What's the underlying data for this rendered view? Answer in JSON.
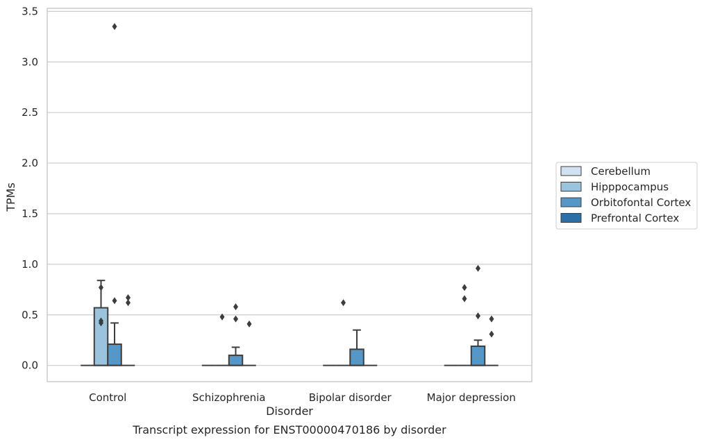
{
  "chart_data": {
    "type": "box",
    "title": "",
    "caption": "Transcript expression for ENST00000470186 by disorder",
    "xlabel": "Disorder",
    "ylabel": "TPMs",
    "ylim": [
      -0.16,
      3.53
    ],
    "yticks": [
      "0.0",
      "0.5",
      "1.0",
      "1.5",
      "2.0",
      "2.5",
      "3.0",
      "3.5"
    ],
    "grid": "horizontal",
    "legend_position": "right",
    "categories": [
      "Control",
      "Schizophrenia",
      "Bipolar disorder",
      "Major depression"
    ],
    "series": [
      {
        "name": "Cerebellum",
        "color": "#d0e1f2",
        "boxes": [
          {
            "q1": 0,
            "median": 0,
            "q3": 0,
            "whisker_low": 0,
            "whisker_high": 0,
            "outliers": []
          },
          {
            "q1": 0,
            "median": 0,
            "q3": 0,
            "whisker_low": 0,
            "whisker_high": 0,
            "outliers": []
          },
          {
            "q1": 0,
            "median": 0,
            "q3": 0,
            "whisker_low": 0,
            "whisker_high": 0,
            "outliers": []
          },
          {
            "q1": 0,
            "median": 0,
            "q3": 0,
            "whisker_low": 0,
            "whisker_high": 0,
            "outliers": []
          }
        ]
      },
      {
        "name": "Hipppocampus",
        "color": "#9ac3dd",
        "boxes": [
          {
            "q1": 0,
            "median": 0,
            "q3": 0.57,
            "whisker_low": 0,
            "whisker_high": 0.84,
            "outliers": [
              0.77,
              0.44,
              0.42
            ]
          },
          {
            "q1": 0,
            "median": 0,
            "q3": 0,
            "whisker_low": 0,
            "whisker_high": 0,
            "outliers": [
              0.48
            ]
          },
          {
            "q1": 0,
            "median": 0,
            "q3": 0,
            "whisker_low": 0,
            "whisker_high": 0,
            "outliers": [
              0.62
            ]
          },
          {
            "q1": 0,
            "median": 0,
            "q3": 0,
            "whisker_low": 0,
            "whisker_high": 0,
            "outliers": [
              0.77,
              0.66
            ]
          }
        ]
      },
      {
        "name": "Orbitofontal Cortex",
        "color": "#5597c6",
        "boxes": [
          {
            "q1": 0,
            "median": 0,
            "q3": 0.21,
            "whisker_low": 0,
            "whisker_high": 0.42,
            "outliers": [
              0.64,
              3.35
            ]
          },
          {
            "q1": 0,
            "median": 0,
            "q3": 0.1,
            "whisker_low": 0,
            "whisker_high": 0.18,
            "outliers": [
              0.58,
              0.46
            ]
          },
          {
            "q1": 0,
            "median": 0,
            "q3": 0.16,
            "whisker_low": 0,
            "whisker_high": 0.35,
            "outliers": []
          },
          {
            "q1": 0,
            "median": 0,
            "q3": 0.19,
            "whisker_low": 0,
            "whisker_high": 0.25,
            "outliers": [
              0.96,
              0.49
            ]
          }
        ]
      },
      {
        "name": "Prefrontal Cortex",
        "color": "#2a6fa8",
        "boxes": [
          {
            "q1": 0,
            "median": 0,
            "q3": 0,
            "whisker_low": 0,
            "whisker_high": 0,
            "outliers": [
              0.67,
              0.62
            ]
          },
          {
            "q1": 0,
            "median": 0,
            "q3": 0,
            "whisker_low": 0,
            "whisker_high": 0,
            "outliers": [
              0.41
            ]
          },
          {
            "q1": 0,
            "median": 0,
            "q3": 0,
            "whisker_low": 0,
            "whisker_high": 0,
            "outliers": []
          },
          {
            "q1": 0,
            "median": 0,
            "q3": 0,
            "whisker_low": 0,
            "whisker_high": 0,
            "outliers": [
              0.46,
              0.31
            ]
          }
        ]
      }
    ]
  }
}
